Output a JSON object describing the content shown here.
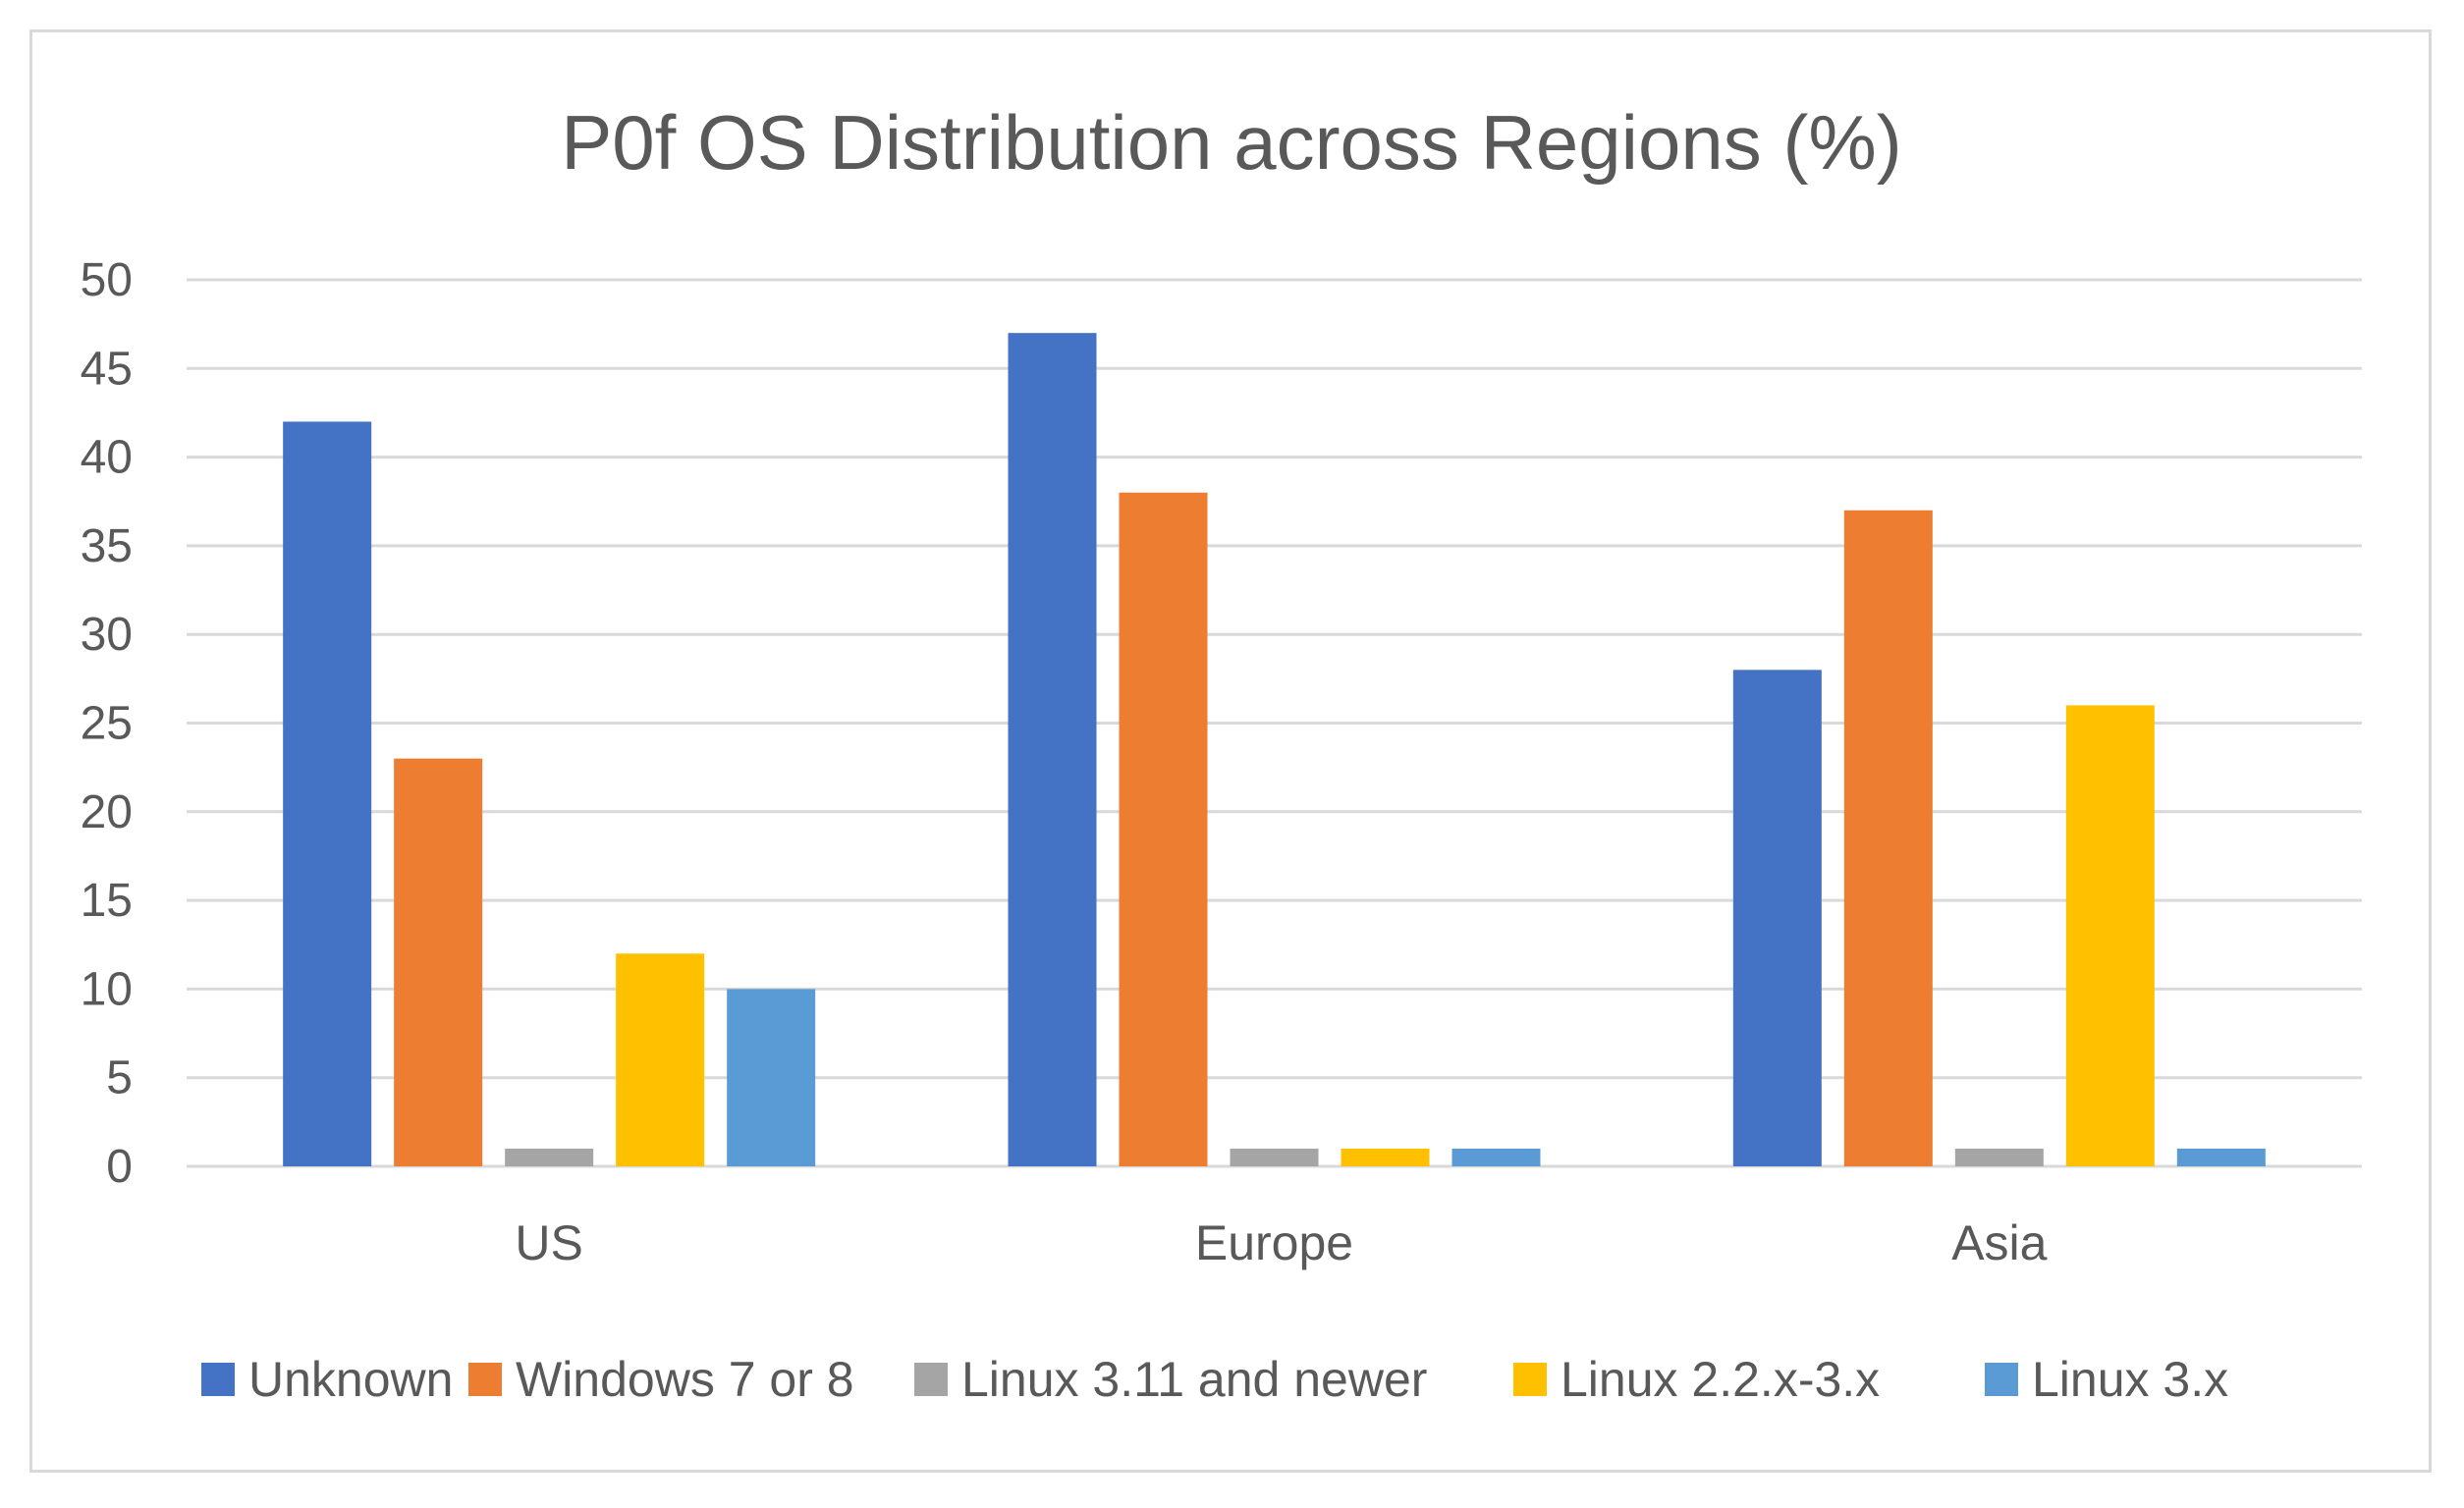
{
  "chart_data": {
    "type": "bar",
    "title": "P0f OS Distribution across Regions (%)",
    "xlabel": "",
    "ylabel": "",
    "ylim": [
      0,
      50
    ],
    "yticks": [
      "0",
      "5",
      "10",
      "15",
      "20",
      "25",
      "30",
      "35",
      "40",
      "45",
      "50"
    ],
    "grid": true,
    "legend_position": "bottom",
    "categories": [
      "US",
      "Europe",
      "Asia"
    ],
    "series": [
      {
        "name": "Unknown",
        "color": "#4472c4",
        "values": [
          42,
          47,
          28
        ]
      },
      {
        "name": "Windows 7 or 8",
        "color": "#ed7d31",
        "values": [
          23,
          38,
          37
        ]
      },
      {
        "name": "Linux 3.11 and newer",
        "color": "#a5a5a5",
        "values": [
          1,
          1,
          1
        ]
      },
      {
        "name": "Linux 2.2.x-3.x",
        "color": "#ffc000",
        "values": [
          12,
          1,
          26
        ]
      },
      {
        "name": "Linux 3.x",
        "color": "#5b9bd5",
        "values": [
          10,
          1,
          1
        ]
      }
    ]
  }
}
